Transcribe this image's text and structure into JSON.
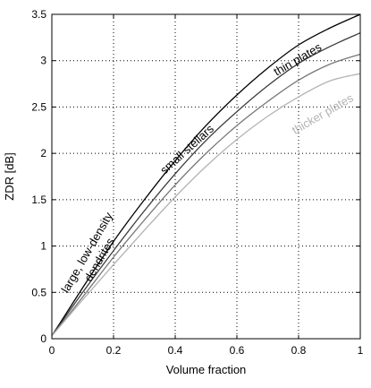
{
  "chart_data": {
    "type": "line",
    "xlabel": "Volume fraction",
    "ylabel": "ZDR [dB]",
    "xlim": [
      0,
      1
    ],
    "ylim": [
      0,
      3.5
    ],
    "grid": "dotted",
    "x_ticks": [
      "0",
      "0.2",
      "0.4",
      "0.6",
      "0.8",
      "1"
    ],
    "y_ticks": [
      "0",
      "0.5",
      "1",
      "1.5",
      "2",
      "2.5",
      "3",
      "3.5"
    ],
    "x": [
      0,
      0.1,
      0.2,
      0.3,
      0.4,
      0.5,
      0.6,
      0.7,
      0.8,
      0.9,
      1.0
    ],
    "series": [
      {
        "color": "#000000",
        "values": [
          0.03,
          0.55,
          1.05,
          1.5,
          1.92,
          2.3,
          2.63,
          2.92,
          3.17,
          3.35,
          3.5
        ]
      },
      {
        "color": "#3c3c3c",
        "values": [
          0.03,
          0.5,
          0.95,
          1.38,
          1.78,
          2.14,
          2.45,
          2.73,
          2.97,
          3.15,
          3.3
        ]
      },
      {
        "color": "#777777",
        "values": [
          0.03,
          0.45,
          0.88,
          1.28,
          1.66,
          2.0,
          2.3,
          2.56,
          2.79,
          2.96,
          3.07
        ]
      },
      {
        "color": "#b3b3b3",
        "values": [
          0.03,
          0.42,
          0.8,
          1.17,
          1.53,
          1.86,
          2.15,
          2.4,
          2.61,
          2.78,
          2.86
        ]
      }
    ],
    "annotations": {
      "dendrites_line1": "large, low-density",
      "dendrites_line2": "dendrites",
      "stellars": "small stellars",
      "thin": "thin plates",
      "thick": "thicker plates"
    },
    "annotation_colors": {
      "thick": "#b3b3b3"
    }
  }
}
